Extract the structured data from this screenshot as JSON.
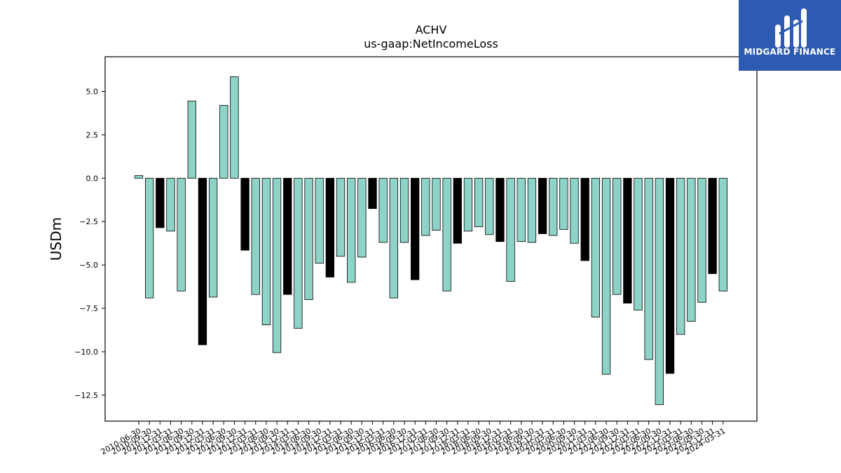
{
  "brand": {
    "name": "MIDGARD FINANCE",
    "bg_color": "#2e5ab1"
  },
  "chart_data": {
    "type": "bar",
    "title": "ACHV",
    "subtitle": "us-gaap:NetIncomeLoss",
    "ylabel": "USDm",
    "xlabel": "",
    "ylim": [
      -14,
      7
    ],
    "yticks": [
      5.0,
      2.5,
      0.0,
      -2.5,
      -5.0,
      -7.5,
      -10.0,
      -12.5
    ],
    "grid": false,
    "colors": {
      "teal": "#8dd3c7",
      "black": "#000000"
    },
    "categories": [
      "2010-06-30",
      "2010-09-30",
      "2010-12-31",
      "2011-03-31",
      "2011-06-30",
      "2011-09-30",
      "2011-12-31",
      "2012-03-31",
      "2012-06-30",
      "2012-09-30",
      "2012-12-31",
      "2013-03-31",
      "2013-06-30",
      "2013-09-30",
      "2013-12-31",
      "2014-03-31",
      "2014-06-30",
      "2014-09-30",
      "2014-12-31",
      "2015-03-31",
      "2015-06-30",
      "2015-09-30",
      "2015-12-31",
      "2016-03-31",
      "2016-06-30",
      "2016-09-30",
      "2016-12-31",
      "2017-03-31",
      "2017-06-30",
      "2017-09-30",
      "2017-12-31",
      "2018-03-31",
      "2018-06-30",
      "2018-09-30",
      "2018-12-31",
      "2019-03-31",
      "2019-06-30",
      "2019-09-30",
      "2019-12-31",
      "2020-03-31",
      "2020-06-30",
      "2020-09-30",
      "2020-12-31",
      "2021-03-31",
      "2021-06-30",
      "2021-09-30",
      "2021-12-31",
      "2022-03-31",
      "2022-06-30",
      "2022-09-30",
      "2022-12-31",
      "2023-03-31",
      "2023-06-30",
      "2023-09-30",
      "2023-12-31",
      "2024-03-31"
    ],
    "xtick_labels": [
      "2010-06-30",
      "2010-09-30",
      "2010-12-31",
      "2011-03-31",
      "2011-06-30",
      "2011-09-30",
      "2011-12-31",
      "2012-03-31",
      "2012-06-30",
      "2012-09-30",
      "2012-12-31",
      "2013-03-31",
      "2013-06-30",
      "2013-09-30",
      "2013-12-31",
      "2014-03-31",
      "2014-06-30",
      "2014-09-30",
      "2014-12-31",
      "2015-03-31",
      "2015-06-30",
      "2015-09-30",
      "2015-12-31",
      "2016-03-31",
      "2016-06-30",
      "2016-09-30",
      "2016-12-31",
      "2017-03-31",
      "2017-06-30",
      "2017-09-30",
      "2017-12-31",
      "2018-03-31",
      "2018-06-30",
      "2018-09-30",
      "2018-12-31",
      "2019-03-31",
      "2019-06-30",
      "2019-09-30",
      "2019-12-31",
      "2020-03-31",
      "2020-06-30",
      "2020-09-30",
      "2020-12-31",
      "2021-03-31",
      "2021-06-30",
      "2021-09-30",
      "2021-12-31",
      "2022-03-31",
      "2022-06-30",
      "2022-09-30",
      "2022-12-31",
      "2023-03-31",
      "2023-06-30",
      "2023-09-30",
      "2023-12-31",
      "2024-03-31"
    ],
    "values": [
      0.15,
      -6.9,
      -2.85,
      -3.05,
      -6.5,
      4.45,
      -9.6,
      -6.85,
      4.2,
      5.85,
      -4.15,
      -6.7,
      -8.45,
      -10.05,
      -6.7,
      -8.65,
      -7.0,
      -4.9,
      -5.7,
      -4.5,
      -6.0,
      -4.55,
      -1.75,
      -3.7,
      -6.9,
      -3.7,
      -5.85,
      -3.3,
      -3.0,
      -6.5,
      -3.75,
      -3.05,
      -2.8,
      -3.25,
      -3.65,
      -5.95,
      -3.65,
      -3.7,
      -3.2,
      -3.3,
      -2.95,
      -3.75,
      -4.75,
      -8.0,
      -11.3,
      -6.7,
      -7.2,
      -7.6,
      -10.45,
      -13.05,
      -11.25,
      -9.0,
      -8.25,
      -7.15,
      -5.5,
      -6.5
    ],
    "bar_colors": [
      "teal",
      "teal",
      "black",
      "teal",
      "teal",
      "teal",
      "black",
      "teal",
      "teal",
      "teal",
      "black",
      "teal",
      "teal",
      "teal",
      "black",
      "teal",
      "teal",
      "teal",
      "black",
      "teal",
      "teal",
      "teal",
      "black",
      "teal",
      "teal",
      "teal",
      "black",
      "teal",
      "teal",
      "teal",
      "black",
      "teal",
      "teal",
      "teal",
      "black",
      "teal",
      "teal",
      "teal",
      "black",
      "teal",
      "teal",
      "teal",
      "black",
      "teal",
      "teal",
      "teal",
      "black",
      "teal",
      "teal",
      "teal",
      "black",
      "teal",
      "teal",
      "teal",
      "black",
      "teal"
    ]
  }
}
